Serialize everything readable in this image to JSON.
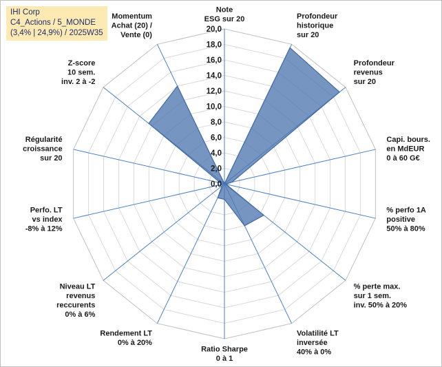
{
  "title_box": {
    "line1": "IHI Corp",
    "line2": "C4_Actions / 5_MONDE",
    "line3": "(3,4% | 24,9%) / 2025W35"
  },
  "chart_data": {
    "type": "radar",
    "r_range": [
      0,
      20
    ],
    "r_ticks": [
      "0,0",
      "2,0",
      "4,0",
      "6,0",
      "8,0",
      "10,0",
      "12,0",
      "14,0",
      "16,0",
      "18,0",
      "20,0"
    ],
    "grid": true,
    "colors": {
      "fill": "#4f79b0",
      "line": "#3f6aa6",
      "grid": "#d9d9d9",
      "axis": "#4a7fc4"
    },
    "axes": [
      {
        "label": [
          "Note",
          "ESG sur 20"
        ],
        "value": 0.0
      },
      {
        "label": [
          "Profondeur",
          "historique",
          "sur 20"
        ],
        "value": 19.5
      },
      {
        "label": [
          "Profondeur",
          "revenus",
          "sur 20"
        ],
        "value": 19.0
      },
      {
        "label": [
          "Capi. bours.",
          "en MdEUR",
          "0 à 60 G€"
        ],
        "value": 1.0
      },
      {
        "label": [
          "% perfo 1A",
          "positive",
          "50% à 80%"
        ],
        "value": 0.2
      },
      {
        "label": [
          "% perte max.",
          "sur 1 sem.",
          "inv. 50% à 20%"
        ],
        "value": 6.5
      },
      {
        "label": [
          "Volatilité LT",
          "inversée",
          "40% à 0%"
        ],
        "value": 6.0
      },
      {
        "label": [
          "Ratio Sharpe",
          "0 à 1"
        ],
        "value": 2.0
      },
      {
        "label": [
          "Rendement LT",
          "0% à 20%"
        ],
        "value": 2.0
      },
      {
        "label": [
          "Niveau LT",
          "revenus",
          "reccurents",
          "0% à 6%"
        ],
        "value": 0.4
      },
      {
        "label": [
          "Perfo. LT",
          "vs index",
          "-8% à 12%"
        ],
        "value": 0.4
      },
      {
        "label": [
          "Régularité",
          "croissance",
          "sur 20"
        ],
        "value": 0.5
      },
      {
        "label": [
          "Z-score",
          "10 sem.",
          "inv. 2 à -2"
        ],
        "value": 12.5
      },
      {
        "label": [
          "Momentum",
          "Achat (20) /",
          "Vente (0)"
        ],
        "value": 14.0
      }
    ]
  }
}
